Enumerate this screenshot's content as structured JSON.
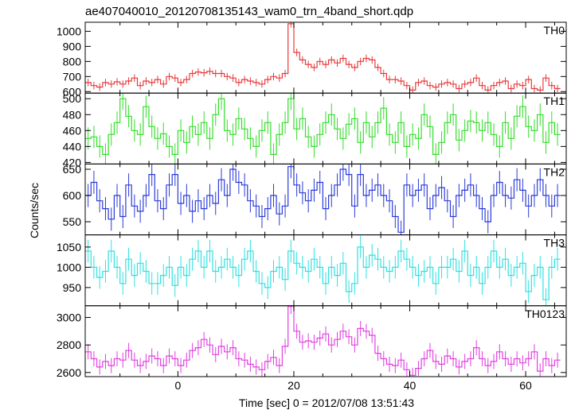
{
  "title": "ae407040010_20120708135143_wam0_trn_4band_short.qdp",
  "ylabel": "Counts/sec",
  "xlabel": "Time [sec] 0 = 2012/07/08 13:51:43",
  "chart_data": [
    {
      "type": "line",
      "series_name": "TH0",
      "color": "#e8393a",
      "xlim": [
        -16,
        67
      ],
      "ylim": [
        590,
        1060
      ],
      "yticks": [
        600,
        700,
        800,
        900,
        1000
      ],
      "x": [
        -15.5,
        -14.5,
        -13.5,
        -12.5,
        -11.5,
        -10.5,
        -9.5,
        -8.5,
        -7.5,
        -6.5,
        -5.5,
        -4.5,
        -3.5,
        -2.5,
        -1.5,
        -0.5,
        0.5,
        1.5,
        2.5,
        3.5,
        4.5,
        5.5,
        6.5,
        7.5,
        8.5,
        9.5,
        10.5,
        11.5,
        12.5,
        13.5,
        14.5,
        15.5,
        16.5,
        17.5,
        18.5,
        19.5,
        20.5,
        21.5,
        22.5,
        23.5,
        24.5,
        25.5,
        26.5,
        27.5,
        28.5,
        29.5,
        30.5,
        31.5,
        32.5,
        33.5,
        34.5,
        35.5,
        36.5,
        37.5,
        38.5,
        39.5,
        40.5,
        41.5,
        42.5,
        43.5,
        44.5,
        45.5,
        46.5,
        47.5,
        48.5,
        49.5,
        50.5,
        51.5,
        52.5,
        53.5,
        54.5,
        55.5,
        56.5,
        57.5,
        58.5,
        59.5,
        60.5,
        61.5,
        62.5,
        63.5,
        64.5,
        65.5
      ],
      "y": [
        660,
        640,
        630,
        660,
        650,
        665,
        650,
        670,
        690,
        640,
        670,
        660,
        680,
        650,
        700,
        690,
        660,
        680,
        720,
        730,
        725,
        735,
        720,
        720,
        700,
        690,
        660,
        680,
        670,
        660,
        650,
        680,
        700,
        690,
        720,
        1050,
        860,
        810,
        780,
        760,
        800,
        780,
        810,
        790,
        820,
        780,
        760,
        800,
        820,
        810,
        760,
        720,
        680,
        680,
        670,
        640,
        610,
        660,
        670,
        640,
        630,
        650,
        660,
        650,
        620,
        650,
        660,
        690,
        640,
        610,
        640,
        660,
        670,
        620,
        650,
        640,
        680,
        620,
        610,
        690,
        640,
        620
      ],
      "yerr": 25
    },
    {
      "type": "line",
      "series_name": "TH1",
      "color": "#33dd2a",
      "xlim": [
        -16,
        67
      ],
      "ylim": [
        418,
        507
      ],
      "yticks": [
        420,
        440,
        460,
        480,
        500
      ],
      "x": [
        -15.5,
        -14.5,
        -13.5,
        -12.5,
        -11.5,
        -10.5,
        -9.5,
        -8.5,
        -7.5,
        -6.5,
        -5.5,
        -4.5,
        -3.5,
        -2.5,
        -1.5,
        -0.5,
        0.5,
        1.5,
        2.5,
        3.5,
        4.5,
        5.5,
        6.5,
        7.5,
        8.5,
        9.5,
        10.5,
        11.5,
        12.5,
        13.5,
        14.5,
        15.5,
        16.5,
        17.5,
        18.5,
        19.5,
        20.5,
        21.5,
        22.5,
        23.5,
        24.5,
        25.5,
        26.5,
        27.5,
        28.5,
        29.5,
        30.5,
        31.5,
        32.5,
        33.5,
        34.5,
        35.5,
        36.5,
        37.5,
        38.5,
        39.5,
        40.5,
        41.5,
        42.5,
        43.5,
        44.5,
        45.5,
        46.5,
        47.5,
        48.5,
        49.5,
        50.5,
        51.5,
        52.5,
        53.5,
        54.5,
        55.5,
        56.5,
        57.5,
        58.5,
        59.5,
        60.5,
        61.5,
        62.5,
        63.5,
        64.5,
        65.5
      ],
      "y": [
        450,
        452,
        440,
        430,
        455,
        470,
        500,
        478,
        460,
        455,
        490,
        465,
        450,
        456,
        440,
        430,
        460,
        445,
        465,
        455,
        470,
        450,
        480,
        500,
        460,
        455,
        475,
        462,
        450,
        440,
        460,
        470,
        430,
        455,
        470,
        500,
        462,
        475,
        452,
        440,
        455,
        470,
        480,
        462,
        450,
        468,
        475,
        445,
        470,
        452,
        470,
        488,
        455,
        445,
        470,
        440,
        455,
        450,
        480,
        465,
        430,
        445,
        470,
        480,
        448,
        460,
        472,
        470,
        460,
        470,
        455,
        440,
        470,
        450,
        478,
        490,
        465,
        460,
        480,
        445,
        470,
        455
      ],
      "yerr": 14
    },
    {
      "type": "line",
      "series_name": "TH2",
      "color": "#2a3ad8",
      "xlim": [
        -16,
        67
      ],
      "ylim": [
        525,
        660
      ],
      "yticks": [
        550,
        600,
        650
      ],
      "x": [
        -15.5,
        -14.5,
        -13.5,
        -12.5,
        -11.5,
        -10.5,
        -9.5,
        -8.5,
        -7.5,
        -6.5,
        -5.5,
        -4.5,
        -3.5,
        -2.5,
        -1.5,
        -0.5,
        0.5,
        1.5,
        2.5,
        3.5,
        4.5,
        5.5,
        6.5,
        7.5,
        8.5,
        9.5,
        10.5,
        11.5,
        12.5,
        13.5,
        14.5,
        15.5,
        16.5,
        17.5,
        18.5,
        19.5,
        20.5,
        21.5,
        22.5,
        23.5,
        24.5,
        25.5,
        26.5,
        27.5,
        28.5,
        29.5,
        30.5,
        31.5,
        32.5,
        33.5,
        34.5,
        35.5,
        36.5,
        37.5,
        38.5,
        39.5,
        40.5,
        41.5,
        42.5,
        43.5,
        44.5,
        45.5,
        46.5,
        47.5,
        48.5,
        49.5,
        50.5,
        51.5,
        52.5,
        53.5,
        54.5,
        55.5,
        56.5,
        57.5,
        58.5,
        59.5,
        60.5,
        61.5,
        62.5,
        63.5,
        64.5,
        65.5
      ],
      "y": [
        600,
        625,
        590,
        575,
        555,
        600,
        560,
        620,
        580,
        570,
        600,
        640,
        590,
        575,
        620,
        640,
        585,
        600,
        570,
        590,
        575,
        600,
        585,
        630,
        600,
        650,
        625,
        620,
        590,
        580,
        560,
        575,
        600,
        565,
        580,
        655,
        620,
        605,
        590,
        610,
        625,
        575,
        600,
        620,
        650,
        640,
        580,
        640,
        600,
        610,
        620,
        600,
        590,
        560,
        530,
        620,
        600,
        610,
        620,
        575,
        600,
        615,
        590,
        560,
        600,
        610,
        620,
        600,
        575,
        550,
        600,
        625,
        600,
        595,
        630,
        610,
        580,
        600,
        630,
        600,
        580,
        600
      ],
      "yerr": 22
    },
    {
      "type": "line",
      "series_name": "TH3",
      "color": "#2fe0e0",
      "xlim": [
        -16,
        67
      ],
      "ylim": [
        905,
        1080
      ],
      "yticks": [
        950,
        1000,
        1050
      ],
      "x": [
        -15.5,
        -14.5,
        -13.5,
        -12.5,
        -11.5,
        -10.5,
        -9.5,
        -8.5,
        -7.5,
        -6.5,
        -5.5,
        -4.5,
        -3.5,
        -2.5,
        -1.5,
        -0.5,
        0.5,
        1.5,
        2.5,
        3.5,
        4.5,
        5.5,
        6.5,
        7.5,
        8.5,
        9.5,
        10.5,
        11.5,
        12.5,
        13.5,
        14.5,
        15.5,
        16.5,
        17.5,
        18.5,
        19.5,
        20.5,
        21.5,
        22.5,
        23.5,
        24.5,
        25.5,
        26.5,
        27.5,
        28.5,
        29.5,
        30.5,
        31.5,
        32.5,
        33.5,
        34.5,
        35.5,
        36.5,
        37.5,
        38.5,
        39.5,
        40.5,
        41.5,
        42.5,
        43.5,
        44.5,
        45.5,
        46.5,
        47.5,
        48.5,
        49.5,
        50.5,
        51.5,
        52.5,
        53.5,
        54.5,
        55.5,
        56.5,
        57.5,
        58.5,
        59.5,
        60.5,
        61.5,
        62.5,
        63.5,
        64.5,
        65.5
      ],
      "y": [
        1040,
        1000,
        975,
        990,
        1040,
        1000,
        960,
        1020,
        980,
        1010,
        990,
        960,
        960,
        980,
        1000,
        955,
        1000,
        980,
        1020,
        1040,
        1000,
        1040,
        990,
        1000,
        1020,
        1000,
        980,
        1020,
        1040,
        990,
        960,
        950,
        990,
        1000,
        970,
        1040,
        1010,
        1000,
        990,
        1020,
        1000,
        960,
        1000,
        980,
        1010,
        940,
        960,
        1050,
        1000,
        1030,
        1020,
        1000,
        990,
        1000,
        1040,
        1020,
        1000,
        980,
        990,
        1000,
        960,
        1000,
        1000,
        1020,
        990,
        1040,
        980,
        1000,
        960,
        1000,
        1040,
        1000,
        1020,
        980,
        1000,
        1010,
        940,
        980,
        1000,
        920,
        1000,
        1020
      ],
      "yerr": 28
    },
    {
      "type": "line",
      "series_name": "TH0123",
      "color": "#e040e0",
      "xlim": [
        -16,
        67
      ],
      "ylim": [
        2570,
        3085
      ],
      "yticks": [
        2600,
        2800,
        3000
      ],
      "x": [
        -15.5,
        -14.5,
        -13.5,
        -12.5,
        -11.5,
        -10.5,
        -9.5,
        -8.5,
        -7.5,
        -6.5,
        -5.5,
        -4.5,
        -3.5,
        -2.5,
        -1.5,
        -0.5,
        0.5,
        1.5,
        2.5,
        3.5,
        4.5,
        5.5,
        6.5,
        7.5,
        8.5,
        9.5,
        10.5,
        11.5,
        12.5,
        13.5,
        14.5,
        15.5,
        16.5,
        17.5,
        18.5,
        19.5,
        20.5,
        21.5,
        22.5,
        23.5,
        24.5,
        25.5,
        26.5,
        27.5,
        28.5,
        29.5,
        30.5,
        31.5,
        32.5,
        33.5,
        34.5,
        35.5,
        36.5,
        37.5,
        38.5,
        39.5,
        40.5,
        41.5,
        42.5,
        43.5,
        44.5,
        45.5,
        46.5,
        47.5,
        48.5,
        49.5,
        50.5,
        51.5,
        52.5,
        53.5,
        54.5,
        55.5,
        56.5,
        57.5,
        58.5,
        59.5,
        60.5,
        61.5,
        62.5,
        63.5,
        64.5,
        65.5
      ],
      "y": [
        2750,
        2700,
        2640,
        2680,
        2650,
        2700,
        2690,
        2760,
        2690,
        2650,
        2680,
        2720,
        2700,
        2650,
        2720,
        2700,
        2650,
        2690,
        2760,
        2780,
        2840,
        2800,
        2730,
        2790,
        2750,
        2780,
        2700,
        2690,
        2660,
        2640,
        2620,
        2680,
        2710,
        2650,
        2790,
        3080,
        2900,
        2820,
        2830,
        2820,
        2850,
        2880,
        2800,
        2840,
        2900,
        2860,
        2800,
        2920,
        2900,
        2870,
        2740,
        2700,
        2660,
        2650,
        2690,
        2620,
        2580,
        2630,
        2700,
        2760,
        2680,
        2660,
        2720,
        2700,
        2640,
        2680,
        2700,
        2780,
        2700,
        2650,
        2680,
        2750,
        2700,
        2660,
        2700,
        2670,
        2700,
        2750,
        2610,
        2700,
        2650,
        2690
      ],
      "yerr": 55
    }
  ],
  "xaxis": {
    "range": [
      -16,
      67
    ],
    "ticks": [
      0,
      20,
      40,
      60
    ]
  }
}
